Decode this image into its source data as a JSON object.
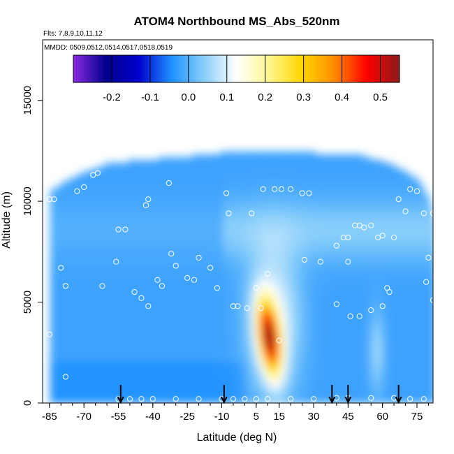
{
  "chart_data": {
    "type": "heatmap",
    "title": "ATOM4 Northbound MS_Abs_520nm",
    "flights_note": "Flts: 7,8,9,10,11,12",
    "dates_note": "MMDD: 0509,0512,0514,0517,0518,0519",
    "xlabel": "Latitude (deg N)",
    "ylabel": "Altitude (m)",
    "xlim": [
      -88,
      82
    ],
    "ylim": [
      0,
      18000
    ],
    "x_ticks": [
      "-85",
      "-70",
      "-55",
      "-40",
      "-25",
      "-10",
      "5",
      "15",
      "30",
      "45",
      "60",
      "75"
    ],
    "y_ticks": [
      "0",
      "5000",
      "10000",
      "15000"
    ],
    "colorbar": {
      "ticks": [
        "-0.2",
        "-0.1",
        "0.0",
        "0.1",
        "0.2",
        "0.3",
        "0.4",
        "0.5"
      ],
      "range": [
        -0.3,
        0.55
      ],
      "colors": [
        "#8a2be2",
        "#00008b",
        "#0000cd",
        "#1e90ff",
        "#87cefa",
        "#ffffff",
        "#fff68f",
        "#ffd700",
        "#ff8c00",
        "#ff0000",
        "#8b1a1a"
      ]
    },
    "fields": {
      "background_value": -0.02,
      "outline_top_m": [
        [
          -85,
          10500
        ],
        [
          -80,
          10800
        ],
        [
          -72,
          11300
        ],
        [
          -60,
          11800
        ],
        [
          -45,
          12000
        ],
        [
          -30,
          12100
        ],
        [
          -15,
          12300
        ],
        [
          0,
          12400
        ],
        [
          15,
          12400
        ],
        [
          35,
          12300
        ],
        [
          50,
          12200
        ],
        [
          65,
          11700
        ],
        [
          75,
          11000
        ],
        [
          80,
          10000
        ],
        [
          82,
          9000
        ]
      ],
      "plume": {
        "center_lat": 10,
        "center_alt": 3200,
        "peak": 0.52
      }
    },
    "sample_points": [
      [
        -85,
        10100
      ],
      [
        -83,
        10100
      ],
      [
        -80,
        6700
      ],
      [
        -78,
        5800
      ],
      [
        -73,
        10500
      ],
      [
        -70,
        10700
      ],
      [
        -66,
        11300
      ],
      [
        -64,
        11400
      ],
      [
        -55,
        8600
      ],
      [
        -52,
        8600
      ],
      [
        -56,
        7000
      ],
      [
        -62,
        5800
      ],
      [
        -48,
        5500
      ],
      [
        -45,
        5200
      ],
      [
        -42,
        4800
      ],
      [
        -38,
        6100
      ],
      [
        -36,
        5800
      ],
      [
        -42,
        10100
      ],
      [
        -43,
        9800
      ],
      [
        -33,
        10900
      ],
      [
        -32,
        7400
      ],
      [
        -30,
        6800
      ],
      [
        -25,
        6200
      ],
      [
        -22,
        6100
      ],
      [
        -20,
        7200
      ],
      [
        -15,
        6700
      ],
      [
        -12,
        5700
      ],
      [
        -8,
        10400
      ],
      [
        -7,
        9400
      ],
      [
        -5,
        4800
      ],
      [
        -3,
        4800
      ],
      [
        1,
        4700
      ],
      [
        3,
        9400
      ],
      [
        5,
        5700
      ],
      [
        7,
        4700
      ],
      [
        8,
        10600
      ],
      [
        10,
        6400
      ],
      [
        13,
        10600
      ],
      [
        15,
        3100
      ],
      [
        16,
        10600
      ],
      [
        20,
        10600
      ],
      [
        25,
        10400
      ],
      [
        26,
        7100
      ],
      [
        28,
        10400
      ],
      [
        33,
        7000
      ],
      [
        40,
        7800
      ],
      [
        43,
        8200
      ],
      [
        45,
        8200
      ],
      [
        45,
        7000
      ],
      [
        48,
        8800
      ],
      [
        50,
        8800
      ],
      [
        52,
        8700
      ],
      [
        55,
        8800
      ],
      [
        58,
        8200
      ],
      [
        60,
        8300
      ],
      [
        62,
        5700
      ],
      [
        63,
        5500
      ],
      [
        65,
        8200
      ],
      [
        67,
        10100
      ],
      [
        70,
        9500
      ],
      [
        72,
        10600
      ],
      [
        75,
        10500
      ],
      [
        78,
        9400
      ],
      [
        82,
        9400
      ],
      [
        80,
        7200
      ],
      [
        79,
        6000
      ],
      [
        82,
        5100
      ],
      [
        60,
        4800
      ],
      [
        55,
        4600
      ],
      [
        50,
        4300
      ],
      [
        46,
        4300
      ],
      [
        40,
        4900
      ],
      [
        -85,
        3400
      ],
      [
        -78,
        1300
      ],
      [
        -55,
        200
      ],
      [
        -50,
        200
      ],
      [
        -45,
        200
      ],
      [
        -40,
        200
      ],
      [
        -30,
        200
      ],
      [
        -20,
        200
      ],
      [
        -10,
        200
      ],
      [
        -5,
        200
      ],
      [
        0,
        200
      ],
      [
        5,
        200
      ],
      [
        10,
        200
      ],
      [
        20,
        200
      ],
      [
        30,
        200
      ],
      [
        40,
        250
      ],
      [
        45,
        250
      ],
      [
        55,
        250
      ],
      [
        65,
        250
      ],
      [
        72,
        200
      ],
      [
        78,
        200
      ]
    ],
    "arrows_lat": [
      -54,
      -9,
      38,
      45,
      67
    ]
  }
}
